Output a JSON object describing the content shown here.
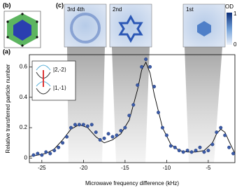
{
  "chart_data": {
    "type": "scatter",
    "panel_label": "(a)",
    "x_label": "Microwave frequency difference (kHz)",
    "y_label": "Relative transferred particle number",
    "xlim": [
      -26.5,
      -1.8
    ],
    "ylim": [
      -0.03,
      0.68
    ],
    "xticks": [
      -25,
      -20,
      -15,
      -10,
      -5
    ],
    "yticks": [
      0,
      0.2,
      0.4,
      0.6
    ],
    "inset_labels": [
      "|2,-2⟩",
      "|1,-1⟩"
    ],
    "series": [
      {
        "color": "#3a5ba8",
        "x": [
          -26,
          -25.5,
          -25,
          -24.5,
          -24,
          -23.5,
          -23,
          -22.5,
          -22,
          -21.5,
          -21,
          -20.5,
          -20,
          -19.5,
          -19,
          -18.5,
          -18,
          -17.5,
          -17,
          -16.5,
          -16,
          -15.5,
          -15,
          -14.5,
          -14,
          -13.5,
          -13,
          -12.5,
          -12,
          -11.5,
          -11,
          -10.5,
          -10,
          -9.5,
          -9,
          -8.5,
          -8,
          -7.5,
          -7,
          -6.5,
          -6,
          -5.5,
          -5,
          -4.5,
          -4,
          -3.5,
          -3,
          -2.5,
          -2
        ],
        "values": [
          0.02,
          0.03,
          0.02,
          0.04,
          0.03,
          0.05,
          0.07,
          0.1,
          0.14,
          0.2,
          0.22,
          0.22,
          0.22,
          0.21,
          0.22,
          0.17,
          0.12,
          0.13,
          0.16,
          0.14,
          0.15,
          0.18,
          0.2,
          0.28,
          0.35,
          0.48,
          0.6,
          0.65,
          0.6,
          0.47,
          0.3,
          0.2,
          0.15,
          0.08,
          0.07,
          0.05,
          0.04,
          0.05,
          0.04,
          0.05,
          0.07,
          0.04,
          0.05,
          0.09,
          0.17,
          0.2,
          0.15,
          0.07,
          0.03
        ]
      },
      {
        "type": "line",
        "color": "#000000",
        "x": [
          -26.5,
          -25.5,
          -24.5,
          -23.5,
          -22.5,
          -21.5,
          -20.5,
          -19.5,
          -18.5,
          -17.5,
          -16.5,
          -15.5,
          -14.5,
          -13.5,
          -13,
          -12.5,
          -12,
          -11.5,
          -10.5,
          -9.5,
          -8.5,
          -7.5,
          -6.5,
          -5.5,
          -4.5,
          -4,
          -3.5,
          -3,
          -2.5,
          -1.8
        ],
        "values": [
          0.01,
          0.02,
          0.03,
          0.06,
          0.12,
          0.19,
          0.22,
          0.2,
          0.14,
          0.1,
          0.12,
          0.16,
          0.25,
          0.45,
          0.58,
          0.63,
          0.56,
          0.42,
          0.2,
          0.09,
          0.05,
          0.04,
          0.04,
          0.05,
          0.1,
          0.16,
          0.19,
          0.17,
          0.11,
          0.03
        ]
      }
    ]
  },
  "panel_b": {
    "label": "(b)"
  },
  "panel_c": {
    "label": "(c)",
    "images": [
      "3rd 4th",
      "2nd",
      "1st"
    ],
    "colorbar": {
      "label": "OD",
      "ticks": [
        1,
        0
      ]
    }
  }
}
